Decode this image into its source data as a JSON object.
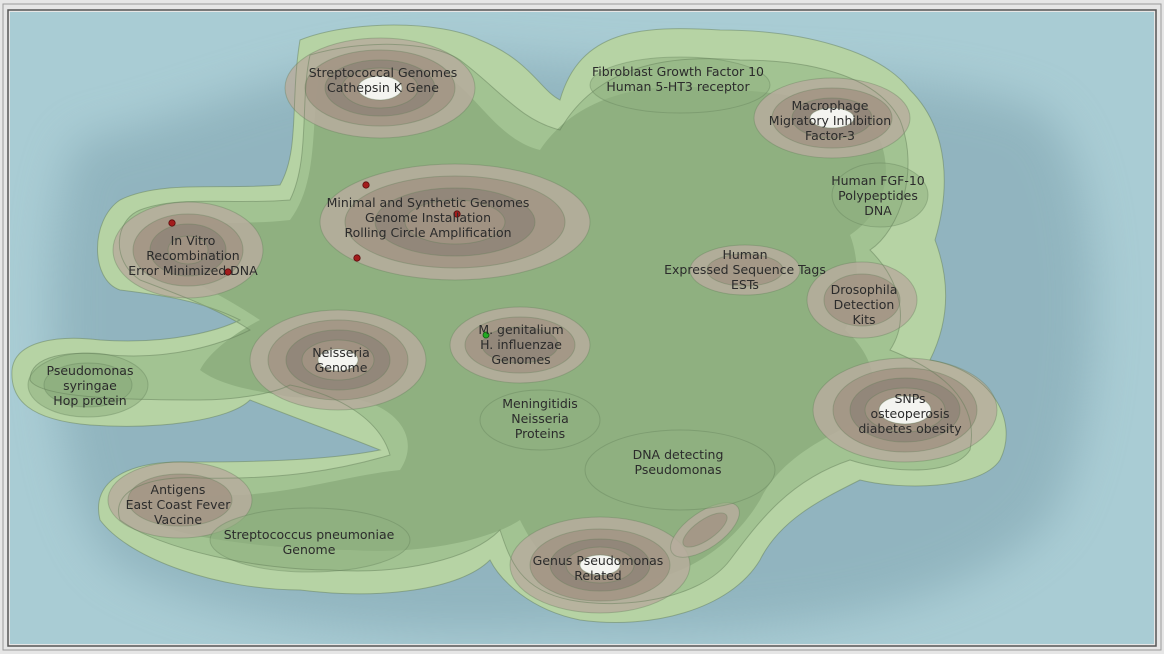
{
  "colors": {
    "ocean": "#a9ccd4",
    "ocean_shadow": "#7ea2ae",
    "land_low": "#b6d3a4",
    "land_mid": "#a2c392",
    "land_hi": "#8fb080",
    "mound_1": "#b7ad9e",
    "mound_2": "#a29484",
    "mound_3": "#8f8478",
    "peak": "#f4f4f0",
    "document_dot": "#a31c1c",
    "selected_dot": "#22aa22",
    "contour": "#5f7a55"
  },
  "regions": [
    {
      "id": "strep-genomes",
      "lines": [
        "Streptococcal Genomes",
        "Cathepsin K Gene"
      ]
    },
    {
      "id": "fgf10-5ht3",
      "lines": [
        "Fibroblast Growth Factor 10",
        "Human 5-HT3 receptor"
      ]
    },
    {
      "id": "macrophage",
      "lines": [
        "Macrophage",
        "Migratory Inhibition",
        "Factor-3"
      ]
    },
    {
      "id": "human-fgf10",
      "lines": [
        "Human FGF-10",
        "Polypeptides",
        "DNA"
      ]
    },
    {
      "id": "synthetic-genomes",
      "lines": [
        "Minimal and Synthetic Genomes",
        "Genome Installation",
        "Rolling Circle Amplification"
      ]
    },
    {
      "id": "in-vitro",
      "lines": [
        "In Vitro",
        "Recombination",
        "Error Minimized DNA"
      ]
    },
    {
      "id": "human-ests",
      "lines": [
        "Human",
        "Expressed Sequence Tags",
        "ESTs"
      ]
    },
    {
      "id": "drosophila",
      "lines": [
        "Drosophila",
        "Detection",
        "Kits"
      ]
    },
    {
      "id": "neisseria-genome",
      "lines": [
        "Neisseria",
        "Genome"
      ]
    },
    {
      "id": "mgenitalium",
      "lines": [
        "M. genitalium",
        "H. influenzae",
        "Genomes"
      ]
    },
    {
      "id": "pseudomonas-syringae",
      "lines": [
        "Pseudomonas",
        "syringae",
        "Hop protein"
      ]
    },
    {
      "id": "meningitidis",
      "lines": [
        "Meningitidis",
        "Neisseria",
        "Proteins"
      ]
    },
    {
      "id": "snps",
      "lines": [
        "SNPs",
        "osteoperosis",
        "diabetes obesity"
      ]
    },
    {
      "id": "dna-detecting",
      "lines": [
        "DNA detecting",
        "Pseudomonas"
      ]
    },
    {
      "id": "antigens",
      "lines": [
        "Antigens",
        "East Coast Fever",
        "Vaccine"
      ]
    },
    {
      "id": "strep-pneumoniae",
      "lines": [
        "Streptococcus pneumoniae",
        "Genome"
      ]
    },
    {
      "id": "genus-pseudomonas",
      "lines": [
        "Genus Pseudomonas",
        "Related"
      ]
    }
  ],
  "document_markers": [
    {
      "id": "doc-1",
      "kind": "document"
    },
    {
      "id": "doc-2",
      "kind": "document"
    },
    {
      "id": "doc-3",
      "kind": "document"
    },
    {
      "id": "doc-4",
      "kind": "document"
    },
    {
      "id": "doc-5",
      "kind": "document"
    },
    {
      "id": "doc-6",
      "kind": "selected"
    }
  ]
}
